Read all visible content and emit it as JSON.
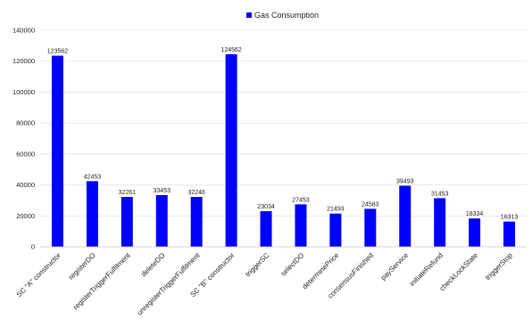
{
  "chart_data": {
    "type": "bar",
    "title": "",
    "xlabel": "",
    "ylabel": "",
    "legend_position": "top-center",
    "grid": true,
    "ylim": [
      0,
      140000
    ],
    "yticks": [
      0,
      20000,
      40000,
      60000,
      80000,
      100000,
      120000,
      140000
    ],
    "categories": [
      "SC \"A\" constructor",
      "registerDO",
      "registerTriggerFulfilment",
      "deleteDO",
      "unregisterTriggerFulfilment",
      "SC \"B\" constructor",
      "triggerSC",
      "selectDO",
      "determinePrice",
      "consensusFinished",
      "payService",
      "initiateRefund",
      "checkLockState",
      "triggerStop"
    ],
    "series": [
      {
        "name": "Gas Consumption",
        "color": "#0000ff",
        "values": [
          123562,
          42453,
          32261,
          33453,
          32246,
          124562,
          23034,
          27453,
          21493,
          24583,
          39493,
          31453,
          18334,
          16313
        ]
      }
    ]
  }
}
